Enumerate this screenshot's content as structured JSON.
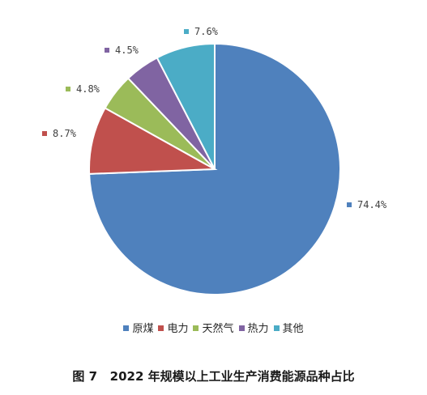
{
  "caption": "图 7   2022 年规模以上工业生产消费能源品种占比",
  "chart_data": {
    "type": "pie",
    "title": "",
    "start": "12 o'clock",
    "direction": "clockwise",
    "legend_position": "bottom",
    "slices": [
      {
        "name": "原煤",
        "value": 74.4,
        "label": "74.4%",
        "color": "#4f81bd"
      },
      {
        "name": "电力",
        "value": 8.7,
        "label": "8.7%",
        "color": "#c0504d"
      },
      {
        "name": "天然气",
        "value": 4.8,
        "label": "4.8%",
        "color": "#9bbb59"
      },
      {
        "name": "热力",
        "value": 4.5,
        "label": "4.5%",
        "color": "#8064a2"
      },
      {
        "name": "其他",
        "value": 7.6,
        "label": "7.6%",
        "color": "#4bacc6"
      }
    ]
  }
}
